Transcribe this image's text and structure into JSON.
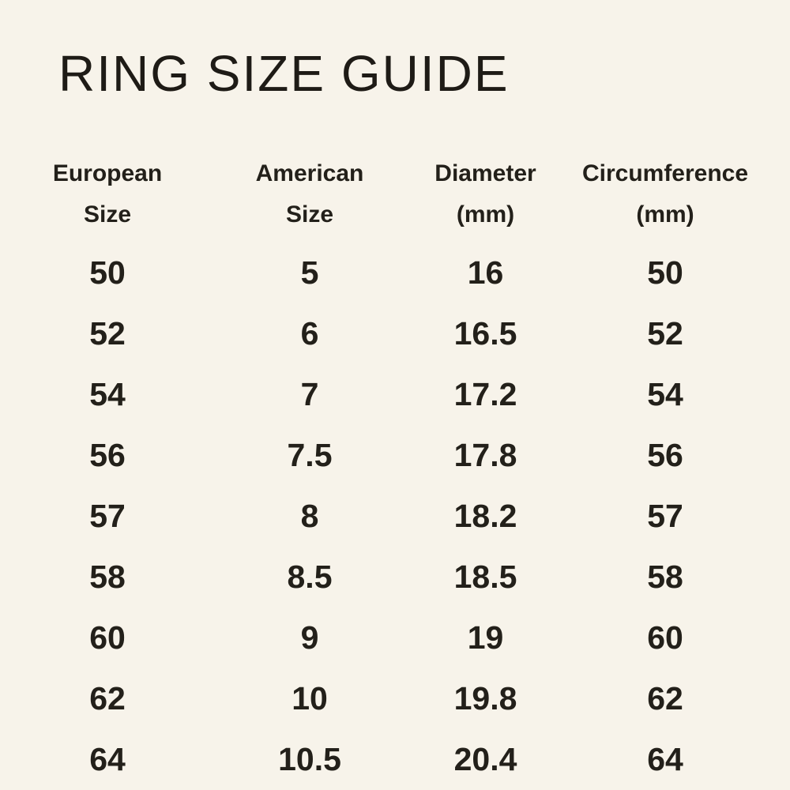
{
  "title": "RING SIZE GUIDE",
  "colors": {
    "background": "#f7f3ea",
    "text": "#23201a"
  },
  "chart_data": {
    "type": "table",
    "title": "RING SIZE GUIDE",
    "columns": [
      "European Size",
      "American Size",
      "Diameter (mm)",
      "Circumference (mm)"
    ],
    "header_lines": [
      [
        "European",
        "Size"
      ],
      [
        "American",
        "Size"
      ],
      [
        "Diameter",
        "(mm)"
      ],
      [
        "Circumference",
        "(mm)"
      ]
    ],
    "rows": [
      [
        "50",
        "5",
        "16",
        "50"
      ],
      [
        "52",
        "6",
        "16.5",
        "52"
      ],
      [
        "54",
        "7",
        "17.2",
        "54"
      ],
      [
        "56",
        "7.5",
        "17.8",
        "56"
      ],
      [
        "57",
        "8",
        "18.2",
        "57"
      ],
      [
        "58",
        "8.5",
        "18.5",
        "58"
      ],
      [
        "60",
        "9",
        "19",
        "60"
      ],
      [
        "62",
        "10",
        "19.8",
        "62"
      ],
      [
        "64",
        "10.5",
        "20.4",
        "64"
      ]
    ]
  }
}
